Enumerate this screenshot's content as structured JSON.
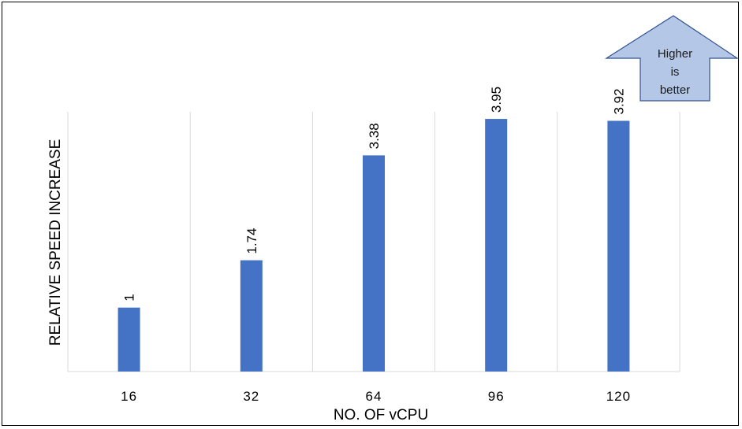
{
  "chart_data": {
    "type": "bar",
    "categories": [
      "16",
      "32",
      "64",
      "96",
      "120"
    ],
    "values": [
      1,
      1.74,
      3.38,
      3.95,
      3.92
    ],
    "data_labels": [
      "1",
      "1.74",
      "3.38",
      "3.95",
      "3.92"
    ],
    "title": "",
    "xlabel": "NO. OF vCPU",
    "ylabel": "RELATIVE SPEED INCREASE",
    "ylim": [
      0,
      4
    ],
    "grid": true,
    "bar_color": "#4472C4",
    "grid_color": "#D9D9D9"
  },
  "annotation": {
    "lines": [
      "Higher",
      "is",
      "better"
    ],
    "fill": "#B4C7E7",
    "stroke": "#2F528F"
  }
}
